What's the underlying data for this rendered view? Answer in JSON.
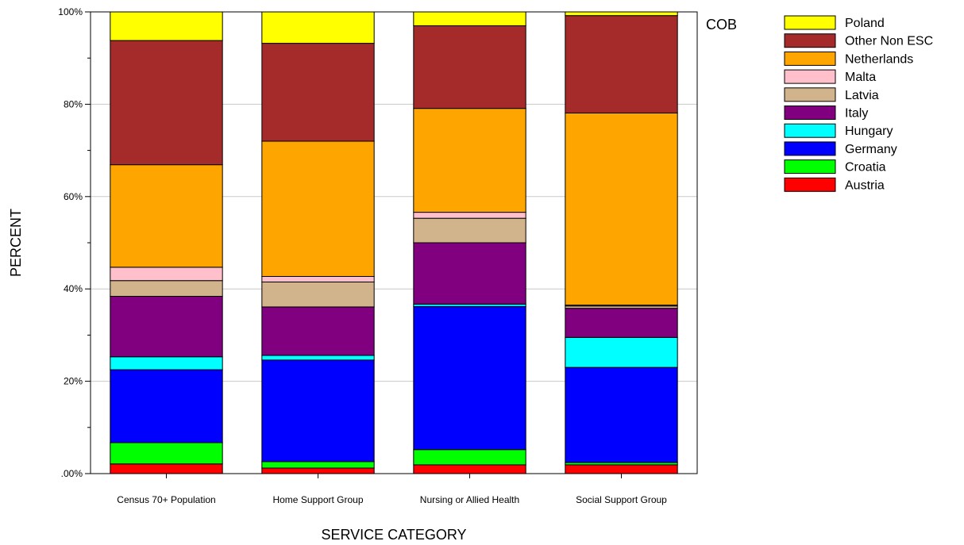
{
  "chart_data": {
    "type": "bar",
    "stacked": true,
    "xlabel": "SERVICE CATEGORY",
    "ylabel": "PERCENT",
    "ylim": [
      0,
      100
    ],
    "yticks": [
      ".00%",
      "20%",
      "40%",
      "60%",
      "80%",
      "100%"
    ],
    "grid": true,
    "legend_title": "COB",
    "legend_position": "right",
    "categories": [
      "Census 70+ Population",
      "Home Support Group",
      "Nursing or Allied Health",
      "Social Support Group"
    ],
    "series": [
      {
        "name": "Austria",
        "color": "#ff0000",
        "values": [
          2.1,
          1.2,
          1.9,
          1.9
        ]
      },
      {
        "name": "Croatia",
        "color": "#00ff00",
        "values": [
          4.6,
          1.4,
          3.3,
          0.5
        ]
      },
      {
        "name": "Germany",
        "color": "#0000ff",
        "values": [
          15.8,
          22.0,
          31.0,
          20.6
        ]
      },
      {
        "name": "Hungary",
        "color": "#00ffff",
        "values": [
          2.8,
          1.0,
          0.5,
          6.5
        ]
      },
      {
        "name": "Italy",
        "color": "#800080",
        "values": [
          13.1,
          10.5,
          13.3,
          6.3
        ]
      },
      {
        "name": "Latvia",
        "color": "#d2b48c",
        "values": [
          3.4,
          5.4,
          5.3,
          0.5
        ]
      },
      {
        "name": "Malta",
        "color": "#ffc0cb",
        "values": [
          2.9,
          1.2,
          1.3,
          0.2
        ]
      },
      {
        "name": "Netherlands",
        "color": "#ffa500",
        "values": [
          22.2,
          29.3,
          22.5,
          41.6
        ]
      },
      {
        "name": "Other Non ESC",
        "color": "#a52a2a",
        "values": [
          26.9,
          21.2,
          17.9,
          21.1
        ]
      },
      {
        "name": "Poland",
        "color": "#ffff00",
        "values": [
          6.2,
          6.8,
          3.0,
          0.8
        ]
      }
    ]
  }
}
